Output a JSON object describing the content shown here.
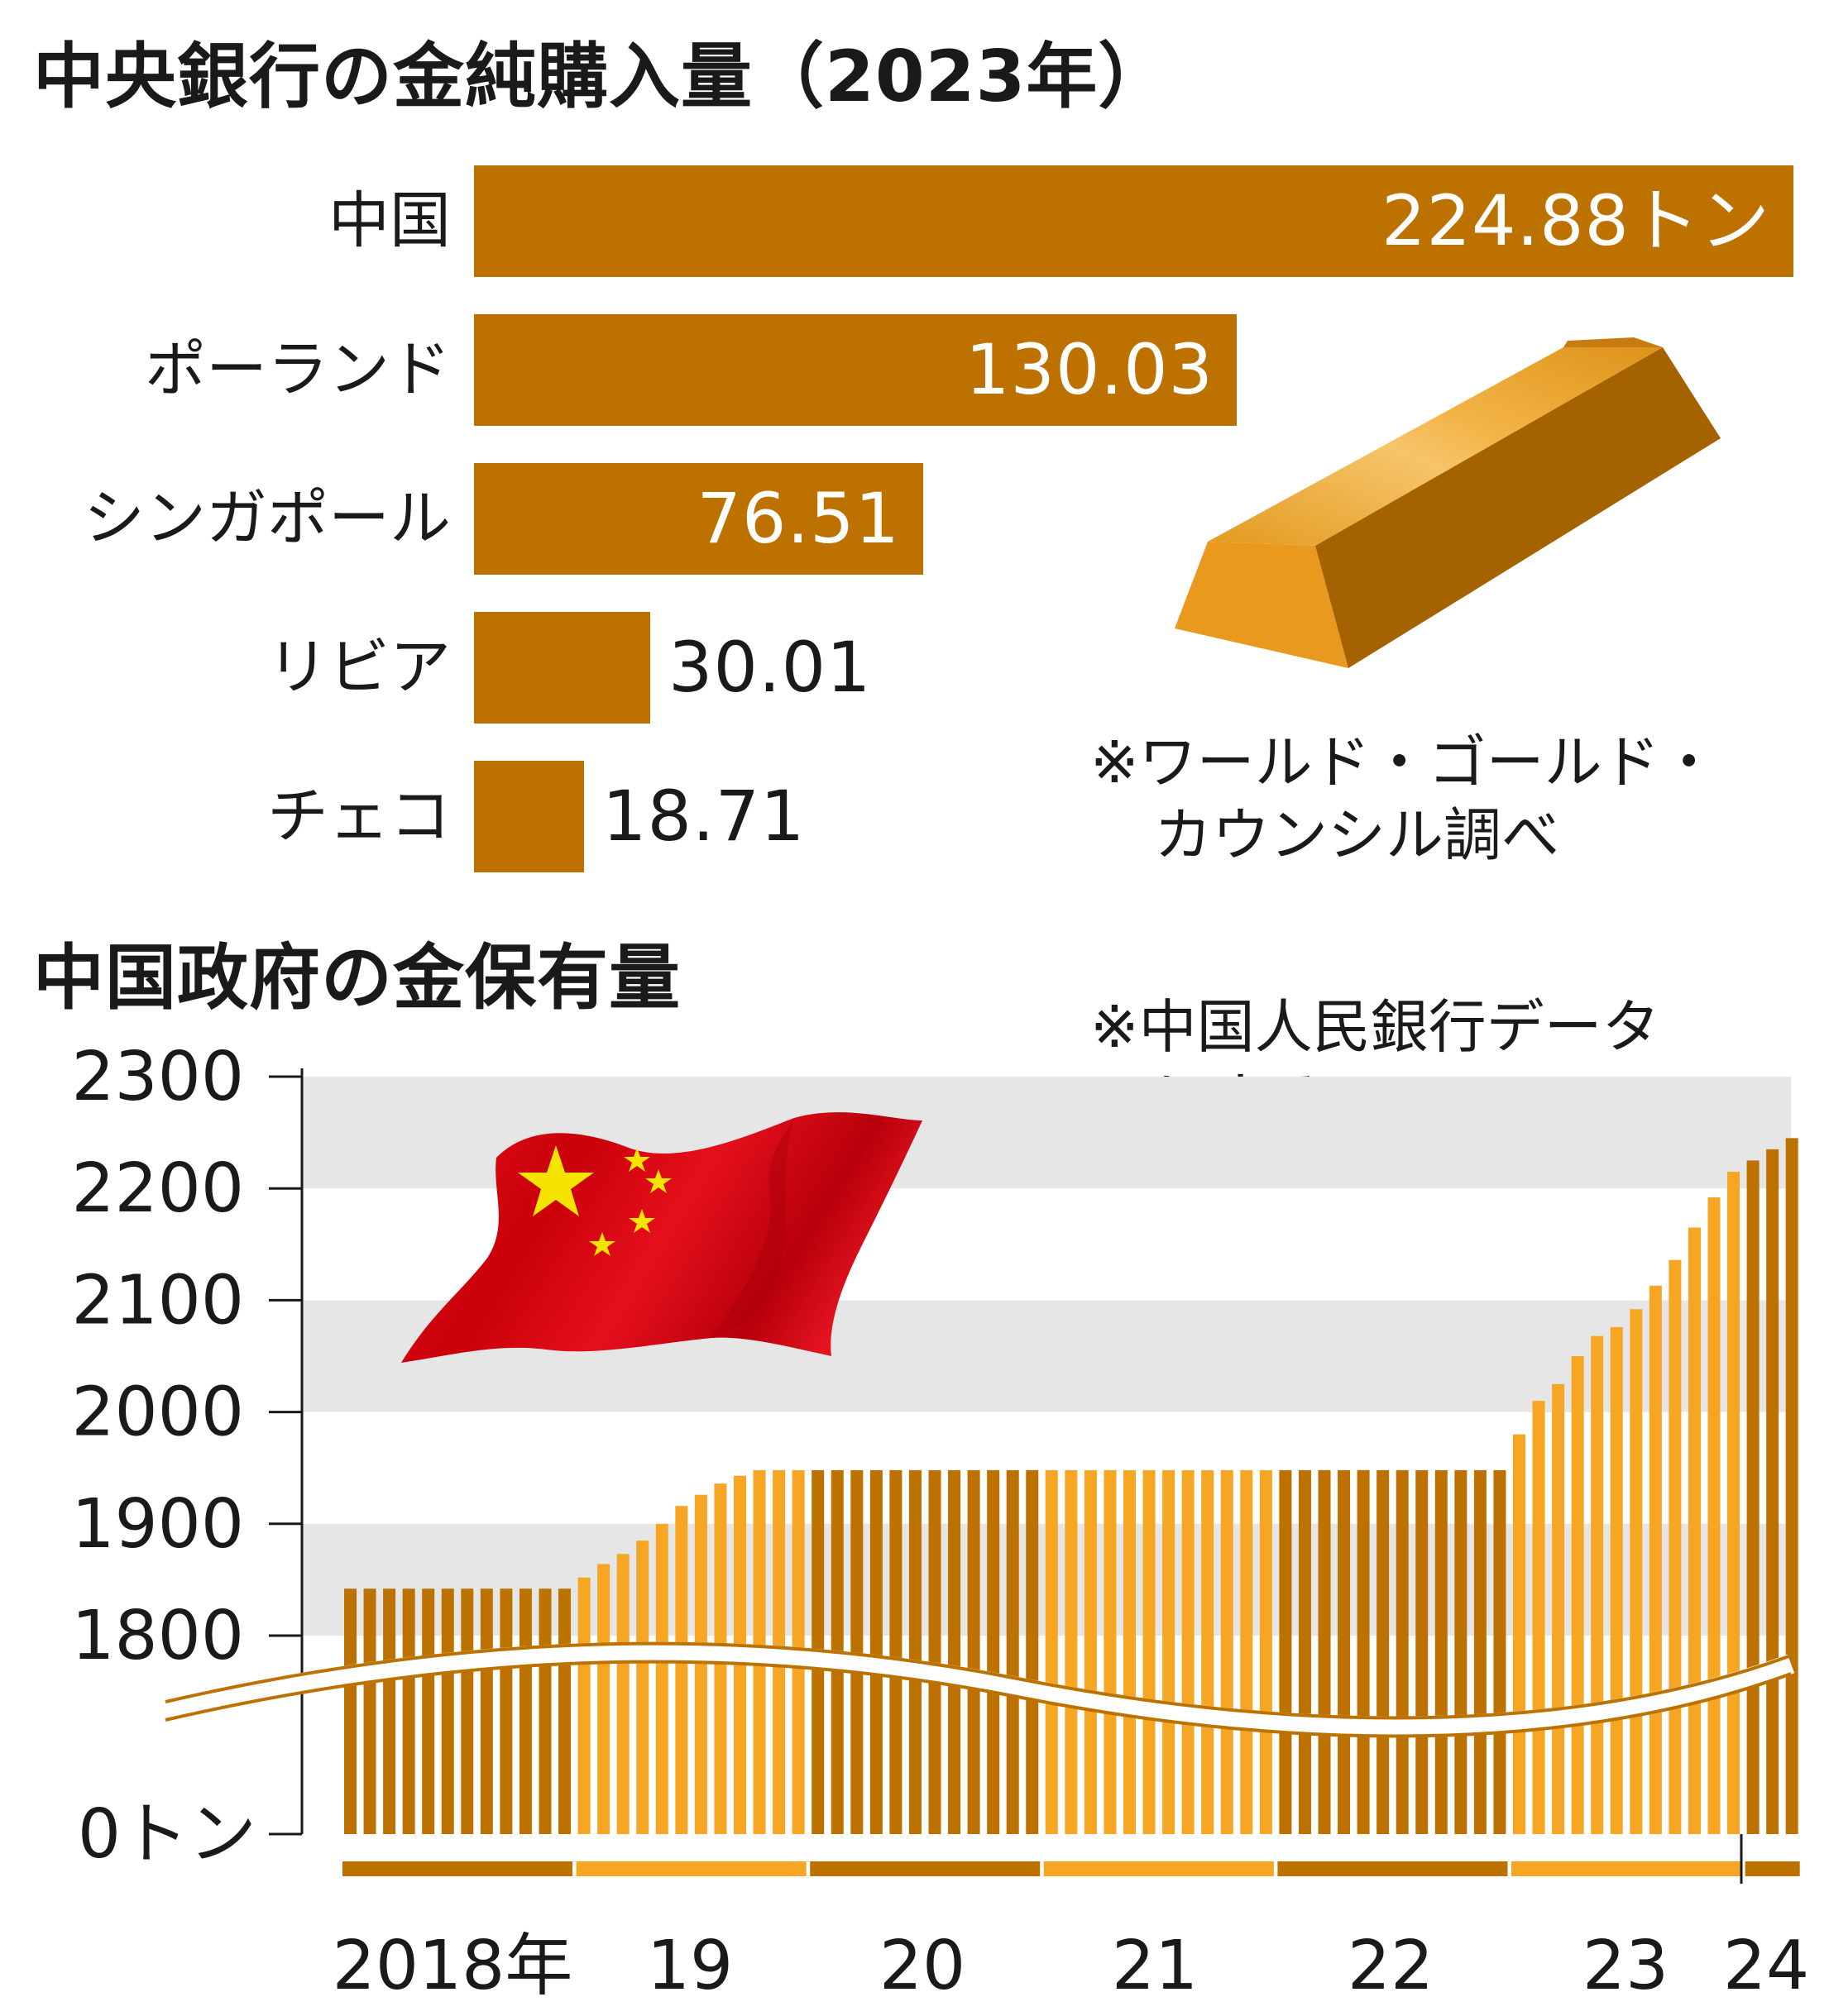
{
  "top_chart": {
    "title": "中央銀行の金純購入量（2023年）",
    "unit": "トン",
    "note_lines": [
      "※ワールド・ゴールド・",
      "カウンシル調べ"
    ]
  },
  "bottom_chart": {
    "title": "中国政府の金保有量",
    "note_lines": [
      "※中国人民銀行データ",
      "による"
    ],
    "zero_label": "0トン"
  },
  "colors": {
    "bar_dark": "#bd7200",
    "bar_light": "#f7a623",
    "band_gray": "#e6e6e6",
    "flag_red": "#d5000f",
    "flag_star": "#f5e400"
  },
  "icons": [
    "gold-bar-icon",
    "china-flag-icon"
  ],
  "chart_data": [
    {
      "type": "bar",
      "orientation": "horizontal",
      "title": "中央銀行の金純購入量（2023年）",
      "categories": [
        "中国",
        "ポーランド",
        "シンガポール",
        "リビア",
        "チェコ"
      ],
      "values": [
        224.88,
        130.03,
        76.51,
        30.01,
        18.71
      ],
      "value_labels": [
        "224.88トン",
        "130.03",
        "76.51",
        "30.01",
        "18.71"
      ],
      "unit": "トン"
    },
    {
      "type": "bar",
      "title": "中国政府の金保有量",
      "ylabel": "トン",
      "yticks": [
        "2300",
        "2200",
        "2100",
        "2000",
        "1900",
        "1800",
        "0トン"
      ],
      "ylim": [
        1800,
        2300
      ],
      "axis_break": true,
      "year_labels": [
        "2018年",
        "19",
        "20",
        "21",
        "22",
        "23",
        "24"
      ],
      "series": [
        {
          "values": [
            1842,
            1842,
            1842,
            1842,
            1842,
            1842,
            1842,
            1842,
            1842,
            1842,
            1842,
            1842,
            1852,
            1864,
            1873,
            1885,
            1900,
            1916,
            1926,
            1936,
            1943,
            1948,
            1948,
            1948,
            1948,
            1948,
            1948,
            1948,
            1948,
            1948,
            1948,
            1948,
            1948,
            1948,
            1948,
            1948,
            1948,
            1948,
            1948,
            1948,
            1948,
            1948,
            1948,
            1948,
            1948,
            1948,
            1948,
            1948,
            1948,
            1948,
            1948,
            1948,
            1948,
            1948,
            1948,
            1948,
            1948,
            1948,
            1948,
            1948,
            1980,
            2010,
            2025,
            2050,
            2068,
            2076,
            2092,
            2113,
            2136,
            2165,
            2192,
            2215,
            2225,
            2235,
            2245
          ]
        }
      ]
    }
  ]
}
